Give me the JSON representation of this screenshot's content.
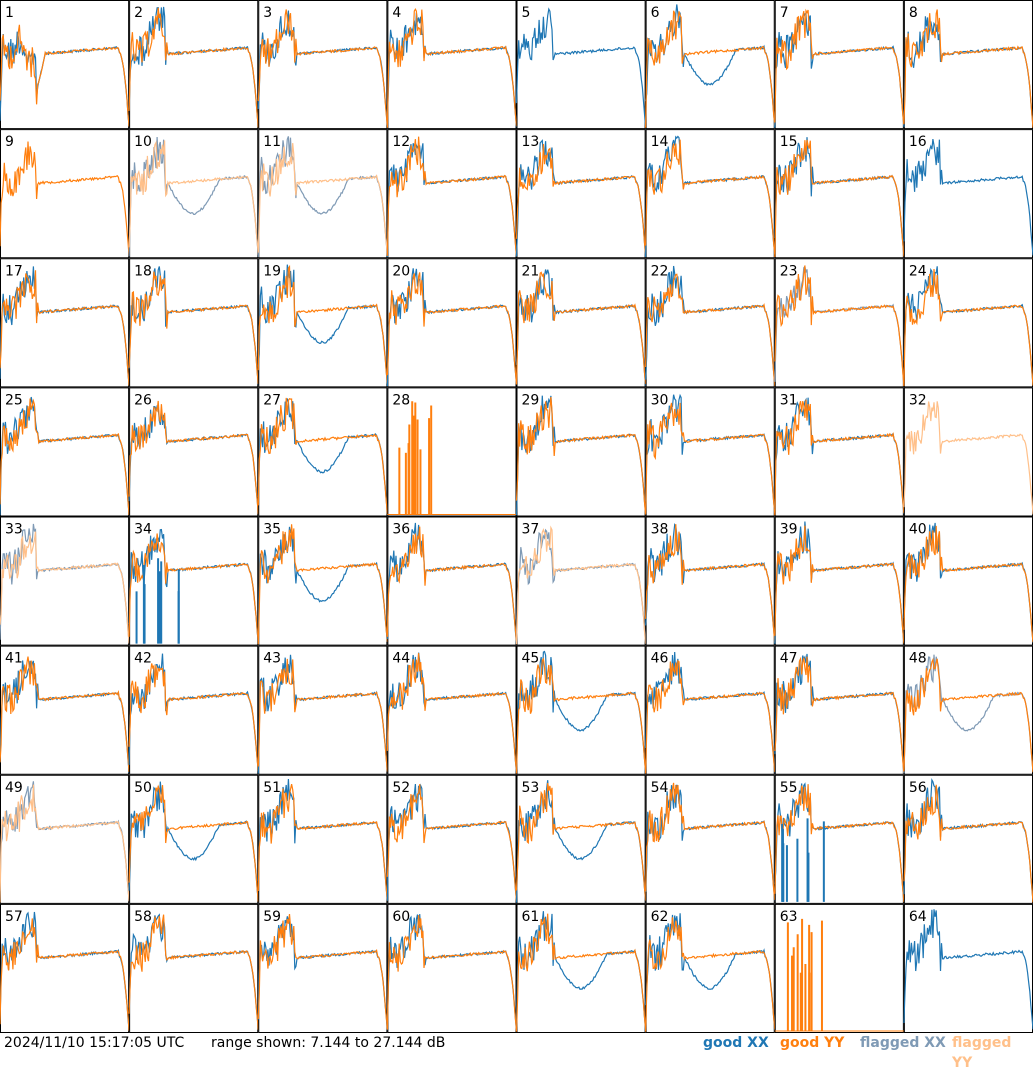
{
  "chart_data": {
    "type": "line",
    "range_db": [
      7.144,
      27.144
    ],
    "colors": {
      "good_xx": "#1f77b4",
      "good_yy": "#ff7f0e",
      "flagged_xx": "#7f9ab5",
      "flagged_yy": "#ffc08a"
    },
    "panels": [
      {
        "id": "1",
        "xx": "good",
        "yy": "good",
        "shape": "wide"
      },
      {
        "id": "2",
        "xx": "good",
        "yy": "good",
        "shape": "normal"
      },
      {
        "id": "3",
        "xx": "good",
        "yy": "good",
        "shape": "normal"
      },
      {
        "id": "4",
        "xx": "good",
        "yy": "good",
        "shape": "normal"
      },
      {
        "id": "5",
        "xx": "good",
        "yy": "good",
        "shape": "xx_only_high"
      },
      {
        "id": "6",
        "xx": "good",
        "yy": "good",
        "shape": "dip"
      },
      {
        "id": "7",
        "xx": "good",
        "yy": "good",
        "shape": "normal"
      },
      {
        "id": "8",
        "xx": "good",
        "yy": "good",
        "shape": "normal"
      },
      {
        "id": "9",
        "xx": "good",
        "yy": "good",
        "shape": "yy_only"
      },
      {
        "id": "10",
        "xx": "flagged",
        "yy": "flagged",
        "shape": "dip"
      },
      {
        "id": "11",
        "xx": "flagged",
        "yy": "flagged",
        "shape": "dip"
      },
      {
        "id": "12",
        "xx": "good",
        "yy": "good",
        "shape": "normal"
      },
      {
        "id": "13",
        "xx": "good",
        "yy": "good",
        "shape": "normal"
      },
      {
        "id": "14",
        "xx": "good",
        "yy": "good",
        "shape": "normal"
      },
      {
        "id": "15",
        "xx": "good",
        "yy": "good",
        "shape": "normal"
      },
      {
        "id": "16",
        "xx": "good",
        "yy": "good",
        "shape": "xx_only"
      },
      {
        "id": "17",
        "xx": "good",
        "yy": "good",
        "shape": "normal"
      },
      {
        "id": "18",
        "xx": "good",
        "yy": "good",
        "shape": "normal"
      },
      {
        "id": "19",
        "xx": "good",
        "yy": "good",
        "shape": "dip"
      },
      {
        "id": "20",
        "xx": "good",
        "yy": "good",
        "shape": "normal"
      },
      {
        "id": "21",
        "xx": "good",
        "yy": "good",
        "shape": "normal"
      },
      {
        "id": "22",
        "xx": "good",
        "yy": "good",
        "shape": "normal"
      },
      {
        "id": "23",
        "xx": "flagged",
        "yy": "good",
        "shape": "noisy"
      },
      {
        "id": "24",
        "xx": "good",
        "yy": "good",
        "shape": "normal"
      },
      {
        "id": "25",
        "xx": "good",
        "yy": "good",
        "shape": "normal"
      },
      {
        "id": "26",
        "xx": "good",
        "yy": "good",
        "shape": "normal"
      },
      {
        "id": "27",
        "xx": "good",
        "yy": "good",
        "shape": "dip"
      },
      {
        "id": "28",
        "xx": "good",
        "yy": "good",
        "shape": "spikes"
      },
      {
        "id": "29",
        "xx": "good",
        "yy": "good",
        "shape": "normal"
      },
      {
        "id": "30",
        "xx": "good",
        "yy": "good",
        "shape": "normal"
      },
      {
        "id": "31",
        "xx": "good",
        "yy": "good",
        "shape": "normal"
      },
      {
        "id": "32",
        "xx": "flagged",
        "yy": "flagged",
        "shape": "yy_only"
      },
      {
        "id": "33",
        "xx": "flagged",
        "yy": "flagged",
        "shape": "normal"
      },
      {
        "id": "34",
        "xx": "good",
        "yy": "good",
        "shape": "xx_spikes"
      },
      {
        "id": "35",
        "xx": "good",
        "yy": "good",
        "shape": "dip"
      },
      {
        "id": "36",
        "xx": "good",
        "yy": "good",
        "shape": "normal"
      },
      {
        "id": "37",
        "xx": "flagged",
        "yy": "flagged",
        "shape": "normal"
      },
      {
        "id": "38",
        "xx": "good",
        "yy": "good",
        "shape": "normal"
      },
      {
        "id": "39",
        "xx": "good",
        "yy": "good",
        "shape": "normal"
      },
      {
        "id": "40",
        "xx": "good",
        "yy": "good",
        "shape": "normal"
      },
      {
        "id": "41",
        "xx": "good",
        "yy": "good",
        "shape": "normal"
      },
      {
        "id": "42",
        "xx": "good",
        "yy": "good",
        "shape": "normal"
      },
      {
        "id": "43",
        "xx": "good",
        "yy": "good",
        "shape": "normal"
      },
      {
        "id": "44",
        "xx": "good",
        "yy": "good",
        "shape": "normal"
      },
      {
        "id": "45",
        "xx": "good",
        "yy": "good",
        "shape": "dip"
      },
      {
        "id": "46",
        "xx": "good",
        "yy": "good",
        "shape": "normal"
      },
      {
        "id": "47",
        "xx": "good",
        "yy": "good",
        "shape": "normal"
      },
      {
        "id": "48",
        "xx": "flagged",
        "yy": "good",
        "shape": "dip"
      },
      {
        "id": "49",
        "xx": "flagged",
        "yy": "flagged",
        "shape": "normal"
      },
      {
        "id": "50",
        "xx": "good",
        "yy": "good",
        "shape": "dip"
      },
      {
        "id": "51",
        "xx": "good",
        "yy": "good",
        "shape": "normal"
      },
      {
        "id": "52",
        "xx": "good",
        "yy": "good",
        "shape": "normal"
      },
      {
        "id": "53",
        "xx": "good",
        "yy": "good",
        "shape": "dip"
      },
      {
        "id": "54",
        "xx": "good",
        "yy": "good",
        "shape": "normal"
      },
      {
        "id": "55",
        "xx": "good",
        "yy": "good",
        "shape": "xx_spikes"
      },
      {
        "id": "56",
        "xx": "good",
        "yy": "good",
        "shape": "normal"
      },
      {
        "id": "57",
        "xx": "good",
        "yy": "good",
        "shape": "normal"
      },
      {
        "id": "58",
        "xx": "good",
        "yy": "good",
        "shape": "normal"
      },
      {
        "id": "59",
        "xx": "good",
        "yy": "good",
        "shape": "normal"
      },
      {
        "id": "60",
        "xx": "good",
        "yy": "good",
        "shape": "normal"
      },
      {
        "id": "61",
        "xx": "good",
        "yy": "good",
        "shape": "dip"
      },
      {
        "id": "62",
        "xx": "good",
        "yy": "good",
        "shape": "dip"
      },
      {
        "id": "63",
        "xx": "good",
        "yy": "good",
        "shape": "spikes"
      },
      {
        "id": "64",
        "xx": "good",
        "yy": "good",
        "shape": "xx_only"
      }
    ]
  },
  "footer": {
    "timestamp": "2024/11/10 15:17:05 UTC",
    "range_text": "range shown: 7.144 to 27.144 dB"
  },
  "legend": {
    "good_xx": "good XX",
    "good_yy": "good YY",
    "flagged_xx": "flagged XX",
    "flagged_yy": "flagged YY"
  }
}
